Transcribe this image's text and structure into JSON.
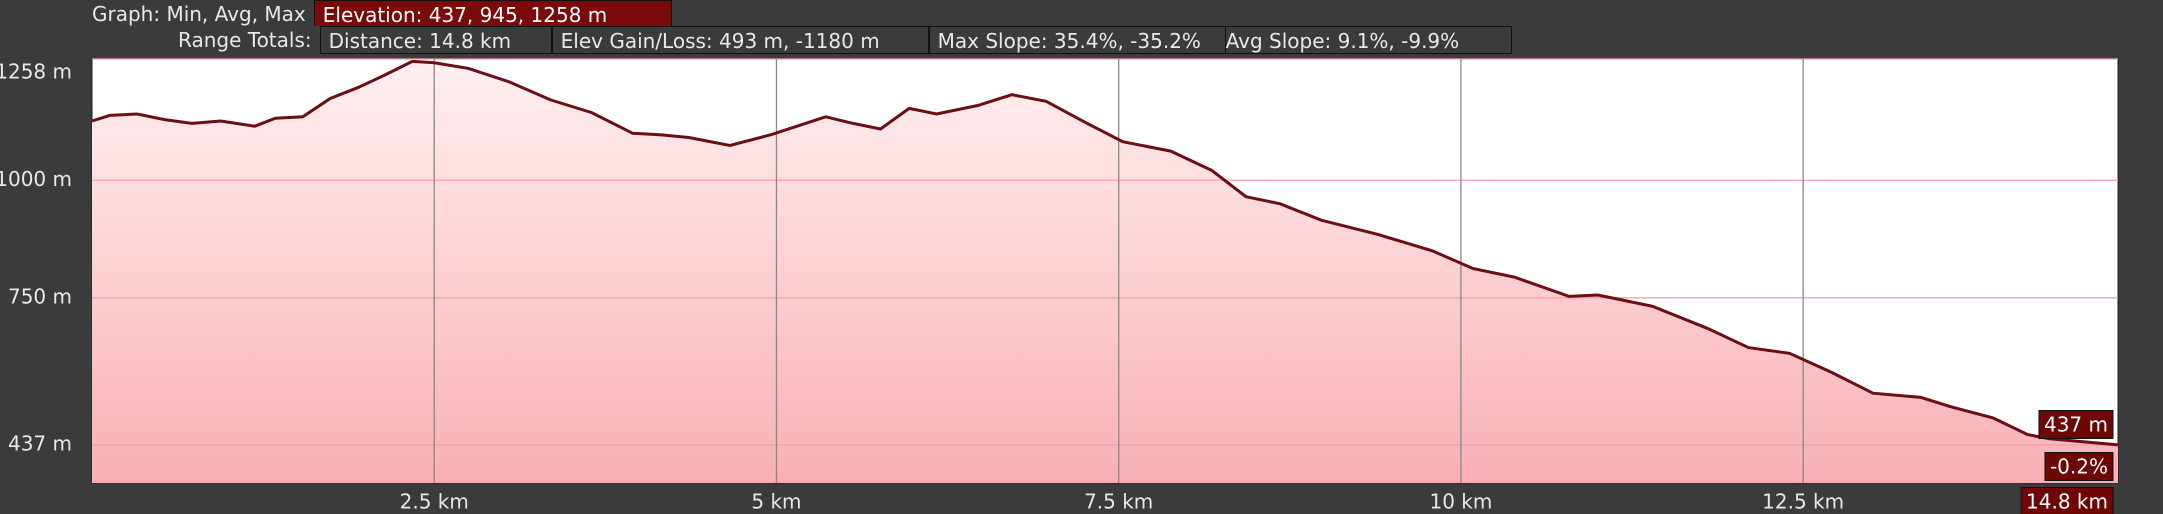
{
  "header": {
    "graph_label": "Graph: Min, Avg, Max",
    "elevation": "Elevation: 437, 945, 1258 m",
    "range_label": "Range Totals:",
    "distance": "Distance: 14.8 km",
    "gain_loss": "Elev Gain/Loss: 493 m, -1180 m",
    "max_slope": "Max Slope: 35.4%, -35.2%",
    "avg_slope": "Avg Slope: 9.1%, -9.9%"
  },
  "chart_data": {
    "type": "area",
    "color": "#6b0f14",
    "fill": "#f8b5ba",
    "x": [
      0,
      0.13,
      0.33,
      0.53,
      0.73,
      0.94,
      1.19,
      1.34,
      1.54,
      1.74,
      1.94,
      2.14,
      2.34,
      2.5,
      2.75,
      3.05,
      3.35,
      3.65,
      3.95,
      4.15,
      4.36,
      4.66,
      4.96,
      5.36,
      5.56,
      5.76,
      5.97,
      6.17,
      6.47,
      6.72,
      6.97,
      7.27,
      7.53,
      7.88,
      8.18,
      8.43,
      8.68,
      8.98,
      9.39,
      9.79,
      10.09,
      10.39,
      10.79,
      11.0,
      11.4,
      11.8,
      12.1,
      12.4,
      12.71,
      13.01,
      13.36,
      13.58,
      13.89,
      14.14,
      14.3,
      14.8
    ],
    "values": [
      1126,
      1138,
      1141,
      1129,
      1121,
      1126,
      1115,
      1132,
      1135,
      1174,
      1197,
      1224,
      1253,
      1250,
      1238,
      1209,
      1171,
      1144,
      1100,
      1097,
      1091,
      1074,
      1097,
      1135,
      1121,
      1109,
      1153,
      1141,
      1159,
      1182,
      1168,
      1121,
      1082,
      1062,
      1021,
      965,
      950,
      915,
      885,
      850,
      812,
      794,
      753,
      756,
      732,
      685,
      644,
      632,
      591,
      547,
      538,
      518,
      494,
      459,
      450,
      437
    ],
    "xlim": [
      0,
      14.8
    ],
    "ylim": [
      356,
      1258
    ],
    "xticks": [
      {
        "value": 2.5,
        "label": "2.5 km"
      },
      {
        "value": 5,
        "label": "5 km"
      },
      {
        "value": 7.5,
        "label": "7.5 km"
      },
      {
        "value": 10,
        "label": "10 km"
      },
      {
        "value": 12.5,
        "label": "12.5 km"
      }
    ],
    "yticks": [
      {
        "value": 437,
        "label": "437 m"
      },
      {
        "value": 750,
        "label": "750 m"
      },
      {
        "value": 1000,
        "label": "1000 m"
      },
      {
        "value": 1258,
        "label": "1258 m"
      }
    ],
    "grid": true,
    "cursor": {
      "elevation": "437 m",
      "slope": "-0.2%",
      "distance": "14.8 km"
    }
  }
}
